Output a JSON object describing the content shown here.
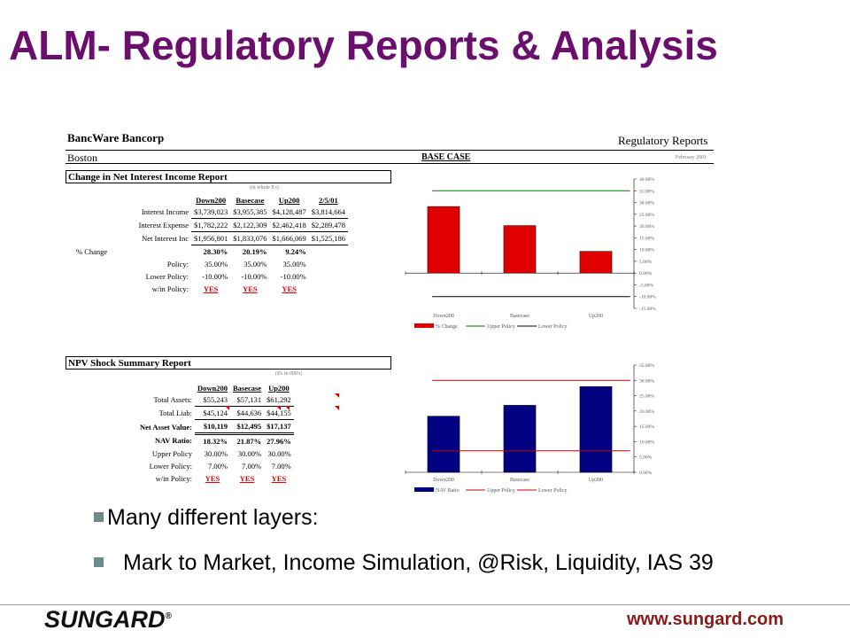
{
  "slide": {
    "title": "ALM- Regulatory Reports & Analysis",
    "bullets": [
      "Many different layers:",
      "Mark to Market, Income Simulation, @Risk, Liquidity, IAS 39"
    ],
    "footer": {
      "logo": "SUNGARD",
      "logo_mark": "®",
      "url": "www.sungard.com"
    }
  },
  "report": {
    "bank": "BancWare Bancorp",
    "city": "Boston",
    "report_type": "Regulatory Reports",
    "scenario": "BASE CASE",
    "date": "February 2001"
  },
  "nii": {
    "title": "Change in Net Interest Income Report",
    "units": "(in whole $'s)",
    "columns": [
      "Down200",
      "Basecase",
      "Up200",
      "2/5/01"
    ],
    "rows": [
      {
        "label": "Interest Income",
        "values": [
          "$3,739,023",
          "$3,955,385",
          "$4,128,487",
          "$3,814,664"
        ]
      },
      {
        "label": "Interest Expense",
        "values": [
          "$1,782,222",
          "$2,122,309",
          "$2,462,418",
          "$2,289,478"
        ]
      },
      {
        "label": "Net Interest Inc",
        "values": [
          "$1,956,801",
          "$1,833,076",
          "$1,666,069",
          "$1,525,186"
        ]
      },
      {
        "label": "% Change",
        "values": [
          "28.30%",
          "20.19%",
          "9.24%",
          ""
        ]
      },
      {
        "label": "Policy:",
        "values": [
          "35.00%",
          "35.00%",
          "35.00%",
          ""
        ]
      },
      {
        "label": "Lower Policy:",
        "values": [
          "-10.00%",
          "-10.00%",
          "-10.00%",
          ""
        ]
      },
      {
        "label": "w/in Policy:",
        "values": [
          "YES",
          "YES",
          "YES",
          ""
        ]
      }
    ]
  },
  "npv": {
    "title": "NPV Shock Summary Report",
    "units": "($'s in 000's)",
    "columns": [
      "Down200",
      "Basecase",
      "Up200"
    ],
    "rows": [
      {
        "label": "Total Assets:",
        "values": [
          "$55,243",
          "$57,131",
          "$61,292"
        ]
      },
      {
        "label": "Total Liab:",
        "values": [
          "$45,124",
          "$44,636",
          "$44,155"
        ]
      },
      {
        "label": "Net Asset Value:",
        "values": [
          "$10,119",
          "$12,495",
          "$17,137"
        ]
      },
      {
        "label": "NAV Ratio:",
        "values": [
          "18.32%",
          "21.87%",
          "27.96%"
        ]
      },
      {
        "label": "Upper Policy",
        "values": [
          "30.00%",
          "30.00%",
          "30.00%"
        ]
      },
      {
        "label": "Lower Policy:",
        "values": [
          "7.00%",
          "7.00%",
          "7.00%"
        ]
      },
      {
        "label": "w/in Policy:",
        "values": [
          "YES",
          "YES",
          "YES"
        ]
      }
    ]
  },
  "chart_data": [
    {
      "type": "bar",
      "categories": [
        "Down200",
        "Basecase",
        "Up200"
      ],
      "series": [
        {
          "name": "% Change",
          "values": [
            28.3,
            20.19,
            9.24
          ],
          "color": "#e00000"
        },
        {
          "name": "Upper Policy",
          "values": [
            35,
            35,
            35
          ],
          "color": "#008000",
          "kind": "line"
        },
        {
          "name": "Lower Policy",
          "values": [
            -10,
            -10,
            -10
          ],
          "color": "#000000",
          "kind": "line"
        }
      ],
      "ylim": [
        -15,
        40
      ],
      "yticks": [
        "40.00%",
        "35.00%",
        "30.00%",
        "25.00%",
        "20.00%",
        "15.00%",
        "10.00%",
        "5.00%",
        "0.00%",
        "-5.00%",
        "-10.00%",
        "-15.00%"
      ],
      "legend": "bottom"
    },
    {
      "type": "bar",
      "categories": [
        "Down200",
        "Basecase",
        "Up200"
      ],
      "series": [
        {
          "name": "NAV Ratio",
          "values": [
            18.32,
            21.87,
            27.96
          ],
          "color": "#000080"
        },
        {
          "name": "Upper Policy",
          "values": [
            30,
            30,
            30
          ],
          "color": "#c00000",
          "kind": "line"
        },
        {
          "name": "Lower Policy",
          "values": [
            7,
            7,
            7
          ],
          "color": "#c00000",
          "kind": "line"
        }
      ],
      "ylim": [
        0,
        35
      ],
      "yticks": [
        "35.00%",
        "30.00%",
        "25.00%",
        "20.00%",
        "15.00%",
        "10.00%",
        "5.00%",
        "0.00%"
      ],
      "legend": "bottom"
    }
  ]
}
